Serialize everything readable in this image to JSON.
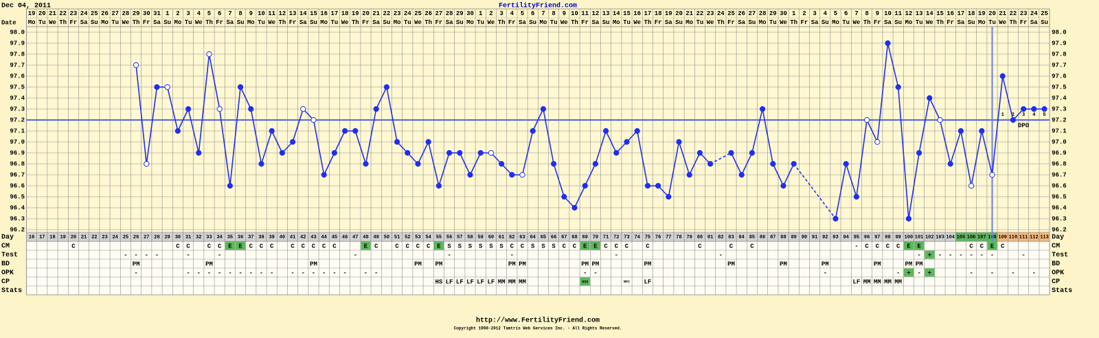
{
  "header": {
    "date": "Dec 04, 2011",
    "site": "FertilityFriend.com"
  },
  "chart_data": {
    "type": "line",
    "row_labels": {
      "date": "Date",
      "day": "Day"
    },
    "dates": [
      "19",
      "20",
      "21",
      "22",
      "23",
      "24",
      "25",
      "26",
      "27",
      "28",
      "29",
      "30",
      "31",
      "1",
      "2",
      "3",
      "4",
      "5",
      "6",
      "7",
      "8",
      "9",
      "10",
      "11",
      "12",
      "13",
      "14",
      "15",
      "16",
      "17",
      "18",
      "19",
      "20",
      "21",
      "22",
      "23",
      "24",
      "25",
      "26",
      "27",
      "28",
      "29",
      "30",
      "1",
      "2",
      "3",
      "4",
      "5",
      "6",
      "7",
      "8",
      "9",
      "10",
      "11",
      "12",
      "13",
      "14",
      "15",
      "16",
      "17",
      "18",
      "19",
      "20",
      "21",
      "22",
      "23",
      "24",
      "25",
      "26",
      "27",
      "28",
      "29",
      "30",
      "1",
      "2",
      "3",
      "4",
      "5",
      "6",
      "7",
      "8",
      "9",
      "10",
      "11",
      "12",
      "13",
      "14",
      "15",
      "16",
      "17",
      "18",
      "19",
      "20",
      "21",
      "22",
      "23",
      "24",
      "25"
    ],
    "weekdays": [
      "Mo",
      "Tu",
      "We",
      "Th",
      "Fr",
      "Sa",
      "Su",
      "Mo",
      "Tu",
      "We",
      "Th",
      "Fr",
      "Sa",
      "Su",
      "Mo",
      "Tu",
      "We",
      "Th",
      "Fr",
      "Sa",
      "Su",
      "Mo",
      "Tu",
      "We",
      "Th",
      "Fr",
      "Sa",
      "Su",
      "Mo",
      "Tu",
      "We",
      "Th",
      "Fr",
      "Sa",
      "Su",
      "Mo",
      "Tu",
      "We",
      "Th",
      "Fr",
      "Sa",
      "Su",
      "Mo",
      "Tu",
      "We",
      "Th",
      "Fr",
      "Sa",
      "Su",
      "Mo",
      "Tu",
      "We",
      "Th",
      "Fr",
      "Sa",
      "Su",
      "Mo",
      "Tu",
      "We",
      "Th",
      "Fr",
      "Sa",
      "Su",
      "Mo",
      "Tu",
      "We",
      "Th",
      "Fr",
      "Sa",
      "Su",
      "Mo",
      "Tu",
      "We",
      "Th",
      "Fr",
      "Sa",
      "Su",
      "Mo",
      "Tu",
      "We",
      "Th",
      "Fr",
      "Sa",
      "Su",
      "Mo",
      "Tu",
      "We",
      "Th",
      "Fr",
      "Sa",
      "Su",
      "Mo",
      "Tu",
      "We",
      "Th",
      "Fr",
      "Sa",
      "Su"
    ],
    "categories": [
      16,
      17,
      18,
      19,
      20,
      21,
      22,
      23,
      24,
      25,
      26,
      27,
      28,
      29,
      30,
      31,
      32,
      33,
      34,
      35,
      36,
      37,
      38,
      39,
      40,
      41,
      42,
      43,
      44,
      45,
      46,
      47,
      48,
      49,
      50,
      51,
      52,
      53,
      54,
      55,
      56,
      57,
      58,
      59,
      60,
      61,
      62,
      63,
      64,
      65,
      66,
      67,
      68,
      69,
      70,
      71,
      72,
      73,
      74,
      75,
      76,
      77,
      78,
      79,
      80,
      81,
      82,
      83,
      84,
      85,
      86,
      87,
      88,
      89,
      90,
      91,
      92,
      93,
      94,
      95,
      96,
      97,
      98,
      99,
      100,
      101,
      102,
      103,
      104,
      105,
      106,
      107,
      108,
      109,
      110,
      111,
      112,
      113
    ],
    "values": [
      null,
      null,
      null,
      null,
      null,
      null,
      null,
      null,
      null,
      null,
      97.7,
      96.8,
      97.5,
      97.5,
      97.1,
      97.3,
      96.9,
      97.8,
      97.3,
      96.6,
      97.5,
      97.3,
      96.8,
      97.1,
      96.9,
      97.0,
      97.3,
      97.2,
      96.7,
      96.9,
      97.1,
      97.1,
      96.8,
      97.3,
      97.5,
      97.0,
      96.9,
      96.8,
      97.0,
      96.6,
      96.9,
      96.9,
      96.7,
      96.9,
      96.9,
      96.8,
      96.7,
      96.7,
      97.1,
      97.3,
      96.8,
      96.5,
      96.4,
      96.6,
      96.8,
      97.1,
      96.9,
      97.0,
      97.1,
      96.6,
      96.6,
      96.5,
      97.0,
      96.7,
      96.9,
      96.8,
      null,
      96.9,
      96.7,
      96.9,
      97.3,
      96.8,
      96.6,
      96.8,
      null,
      null,
      null,
      96.3,
      96.8,
      96.5,
      97.2,
      97.0,
      97.9,
      97.5,
      96.3,
      96.9,
      97.4,
      97.2,
      96.8,
      97.1,
      96.6,
      97.1,
      96.7,
      97.6,
      97.2,
      97.3,
      97.3,
      97.3
    ],
    "color": "#1f2ff0",
    "hollow": [
      26,
      27,
      29,
      33,
      34,
      42,
      43,
      60,
      63,
      96,
      97,
      103,
      106,
      108
    ],
    "ylim": [
      96.2,
      98.0
    ],
    "yticks": [
      {
        "value": 98,
        "label": "98.0"
      },
      97.9,
      97.8,
      97.7,
      97.6,
      97.5,
      97.4,
      97.3,
      97.2,
      97.1,
      {
        "value": 97,
        "label": "97.0"
      },
      96.9,
      96.8,
      96.7,
      96.6,
      96.5,
      96.4,
      96.3,
      96.2
    ],
    "grid": true,
    "coverline": 97.2,
    "coverline_color": "#4f63f0",
    "ovulation_day": 108,
    "dpo": {
      "label": "DPO",
      "numbers": [
        1,
        2,
        3,
        4,
        5
      ]
    },
    "day_highlight": {
      "green": [
        105,
        106,
        107,
        108
      ],
      "orange": [
        109,
        110,
        111,
        112,
        113
      ]
    },
    "highlight_values": [
      "E",
      "+",
      "HSO"
    ],
    "rows": [
      {
        "label": "CM",
        "cells": [
          null,
          null,
          null,
          null,
          "C",
          null,
          null,
          null,
          null,
          null,
          null,
          null,
          null,
          null,
          "C",
          "C",
          null,
          "C",
          "C",
          "E",
          "E",
          "C",
          "C",
          "C",
          null,
          "C",
          "C",
          "C",
          "C",
          "C",
          null,
          null,
          "E",
          "C",
          null,
          "C",
          "C",
          "C",
          "C",
          "E",
          "S",
          "S",
          "S",
          "S",
          "S",
          "S",
          "C",
          "C",
          "S",
          "S",
          "S",
          "C",
          "C",
          "E",
          "E",
          "C",
          "C",
          "C",
          null,
          "C",
          null,
          null,
          null,
          null,
          "C",
          null,
          null,
          "C",
          null,
          "C",
          null,
          null,
          null,
          null,
          null,
          null,
          null,
          null,
          null,
          "-",
          "C",
          "C",
          "C",
          "C",
          "E",
          "E",
          null,
          null,
          null,
          null,
          "C",
          "C",
          "E",
          "C",
          null,
          null,
          null,
          null
        ]
      },
      {
        "label": "Test",
        "cells": [
          null,
          null,
          null,
          null,
          null,
          null,
          null,
          null,
          null,
          "-",
          "-",
          "-",
          "-",
          null,
          null,
          "-",
          null,
          null,
          "-",
          null,
          null,
          null,
          null,
          null,
          null,
          null,
          null,
          null,
          null,
          null,
          null,
          "-",
          null,
          null,
          null,
          null,
          null,
          null,
          null,
          null,
          "-",
          null,
          null,
          null,
          null,
          null,
          "-",
          null,
          null,
          null,
          null,
          null,
          null,
          null,
          null,
          null,
          "-",
          null,
          null,
          null,
          null,
          null,
          null,
          null,
          null,
          null,
          "-",
          null,
          null,
          null,
          null,
          null,
          null,
          null,
          null,
          null,
          null,
          null,
          null,
          null,
          null,
          null,
          null,
          null,
          null,
          "-",
          "+",
          "-",
          "-",
          "-",
          "-",
          "-",
          "-",
          null,
          null,
          "-",
          null,
          null
        ]
      },
      {
        "label": "BD",
        "cells": [
          null,
          null,
          null,
          null,
          null,
          null,
          null,
          null,
          null,
          null,
          "PM",
          null,
          null,
          null,
          null,
          null,
          null,
          "PM",
          null,
          null,
          null,
          null,
          null,
          null,
          null,
          null,
          null,
          "PM",
          null,
          null,
          null,
          null,
          null,
          null,
          null,
          null,
          null,
          "PM",
          null,
          "PM",
          null,
          null,
          null,
          null,
          null,
          null,
          "PM",
          "PM",
          null,
          null,
          null,
          null,
          null,
          "PM",
          "PM",
          null,
          null,
          null,
          null,
          "PM",
          null,
          null,
          null,
          null,
          null,
          null,
          null,
          "PM",
          null,
          null,
          null,
          null,
          "PM",
          null,
          null,
          null,
          "PM",
          null,
          null,
          null,
          null,
          "PM",
          null,
          null,
          "PM",
          "PM",
          null,
          null,
          null,
          null,
          null,
          null,
          null,
          null,
          null,
          null,
          null,
          null
        ]
      },
      {
        "label": "OPK",
        "cells": [
          null,
          null,
          null,
          null,
          null,
          null,
          null,
          null,
          null,
          null,
          "-",
          null,
          null,
          null,
          null,
          "-",
          "-",
          "-",
          "-",
          "-",
          "-",
          "-",
          "-",
          "-",
          null,
          "-",
          "-",
          "-",
          "-",
          "-",
          "-",
          null,
          "-",
          "-",
          null,
          null,
          null,
          null,
          null,
          null,
          null,
          null,
          null,
          null,
          null,
          null,
          null,
          null,
          null,
          null,
          null,
          null,
          null,
          "-",
          "-",
          null,
          null,
          null,
          null,
          null,
          null,
          null,
          null,
          null,
          null,
          null,
          null,
          null,
          null,
          null,
          null,
          null,
          null,
          null,
          null,
          null,
          "-",
          null,
          null,
          null,
          null,
          null,
          null,
          "-",
          "+",
          "-",
          "+",
          null,
          null,
          null,
          "-",
          null,
          "-",
          null,
          "-",
          null,
          "-",
          null
        ]
      },
      {
        "label": "CP",
        "cells": [
          null,
          null,
          null,
          null,
          null,
          null,
          null,
          null,
          null,
          null,
          null,
          null,
          null,
          null,
          null,
          null,
          null,
          null,
          null,
          null,
          null,
          null,
          null,
          null,
          null,
          null,
          null,
          null,
          null,
          null,
          null,
          null,
          null,
          null,
          null,
          null,
          null,
          null,
          null,
          "HS",
          "LF",
          "LF",
          "LF",
          "LF",
          "LF",
          "MM",
          "MM",
          "MM",
          null,
          null,
          null,
          null,
          null,
          "HSO",
          null,
          null,
          null,
          "MFC",
          null,
          "LF",
          null,
          null,
          null,
          null,
          null,
          null,
          null,
          null,
          null,
          null,
          null,
          null,
          null,
          null,
          null,
          null,
          null,
          null,
          null,
          "LF",
          "MM",
          "MM",
          "MM",
          "MM",
          null,
          null,
          null,
          null,
          null,
          null,
          null,
          null,
          null,
          null,
          null,
          null,
          null,
          null
        ]
      },
      {
        "label": "Stats"
      }
    ]
  },
  "footer": {
    "url": "http://www.FertilityFriend.com",
    "copyright": "Copyright 1998-2012 Tamtris Web Services Inc. - All Rights Reserved."
  }
}
